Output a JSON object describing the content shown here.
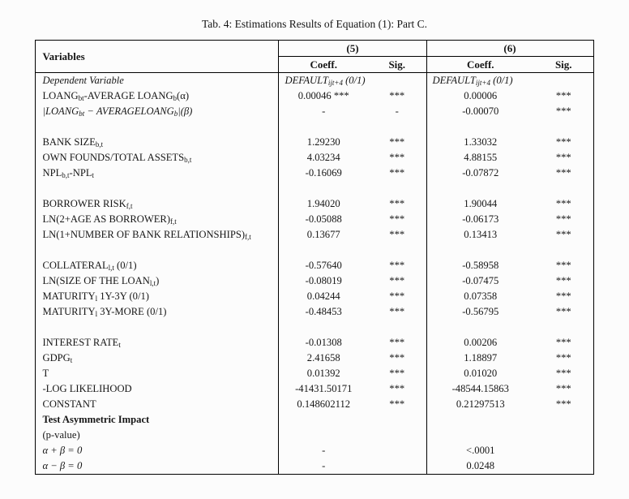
{
  "page": {
    "title": "Tab. 4: Estimations Results of Equation (1): Part C."
  },
  "table": {
    "header": {
      "variables_label": "Variables",
      "groups": [
        {
          "id": "(5)",
          "coeff": "Coeff.",
          "sig": "Sig."
        },
        {
          "id": "(6)",
          "coeff": "Coeff.",
          "sig": "Sig."
        }
      ]
    },
    "rows": [
      {
        "type": "depvar",
        "label": [
          {
            "t": "Dependent Variable"
          }
        ],
        "label_style": "italic",
        "c5": [
          {
            "t": "DEFAULT"
          },
          {
            "s": "ijt+4"
          },
          {
            "t": " (0/1)"
          }
        ],
        "c6": [
          {
            "t": "DEFAULT"
          },
          {
            "s": "ijt+4"
          },
          {
            "t": " (0/1)"
          }
        ]
      },
      {
        "label": [
          {
            "t": "LOANG"
          },
          {
            "s": "bt"
          },
          {
            "t": "-AVERAGE LOANG"
          },
          {
            "s": "b"
          },
          {
            "t": "(α)"
          }
        ],
        "c5_coeff": "0.00046 ***",
        "c5_sig": "***",
        "c6_coeff": "0.00006",
        "c6_sig": "***"
      },
      {
        "label": [
          {
            "t": "|LOANG"
          },
          {
            "s": "bt"
          },
          {
            "t": " − AVERAGELOANG"
          },
          {
            "s": "b"
          },
          {
            "t": "|(β)"
          }
        ],
        "label_style": "italic",
        "c5_coeff": "-",
        "c5_sig": "-",
        "c6_coeff": "-0.00070",
        "c6_sig": "***"
      },
      {
        "type": "blank"
      },
      {
        "label": [
          {
            "t": "BANK SIZE"
          },
          {
            "s": "b,t"
          }
        ],
        "c5_coeff": "1.29230",
        "c5_sig": "***",
        "c6_coeff": "1.33032",
        "c6_sig": "***"
      },
      {
        "label": [
          {
            "t": "OWN FOUNDS/TOTAL ASSETS"
          },
          {
            "s": "b,t"
          }
        ],
        "c5_coeff": "4.03234",
        "c5_sig": "***",
        "c6_coeff": "4.88155",
        "c6_sig": "***"
      },
      {
        "label": [
          {
            "t": "NPL"
          },
          {
            "s": "b,t"
          },
          {
            "t": "-NPL"
          },
          {
            "s": "t"
          }
        ],
        "c5_coeff": "-0.16069",
        "c5_sig": "***",
        "c6_coeff": "-0.07872",
        "c6_sig": "***"
      },
      {
        "type": "blank"
      },
      {
        "label": [
          {
            "t": "BORROWER RISK"
          },
          {
            "s": "f,t"
          }
        ],
        "c5_coeff": "1.94020",
        "c5_sig": "***",
        "c6_coeff": "1.90044",
        "c6_sig": "***"
      },
      {
        "label": [
          {
            "t": "LN(2+AGE AS BORROWER)"
          },
          {
            "s": "f,t"
          }
        ],
        "c5_coeff": "-0.05088",
        "c5_sig": "***",
        "c6_coeff": "-0.06173",
        "c6_sig": "***"
      },
      {
        "label": [
          {
            "t": "LN(1+NUMBER OF BANK RELATIONSHIPS)"
          },
          {
            "s": "f,t"
          }
        ],
        "c5_coeff": "0.13677",
        "c5_sig": "***",
        "c6_coeff": "0.13413",
        "c6_sig": "***"
      },
      {
        "type": "blank"
      },
      {
        "label": [
          {
            "t": "COLLATERAL"
          },
          {
            "s": "l,t"
          },
          {
            "t": " (0/1)"
          }
        ],
        "c5_coeff": "-0.57640",
        "c5_sig": "***",
        "c6_coeff": "-0.58958",
        "c6_sig": "***"
      },
      {
        "label": [
          {
            "t": "LN(SIZE OF THE LOAN"
          },
          {
            "s": "l,t"
          },
          {
            "t": ")"
          }
        ],
        "c5_coeff": "-0.08019",
        "c5_sig": "***",
        "c6_coeff": "-0.07475",
        "c6_sig": "***"
      },
      {
        "label": [
          {
            "t": "MATURITY"
          },
          {
            "s": "l"
          },
          {
            "t": " 1Y-3Y (0/1)"
          }
        ],
        "c5_coeff": "0.04244",
        "c5_sig": "***",
        "c6_coeff": "0.07358",
        "c6_sig": "***"
      },
      {
        "label": [
          {
            "t": "MATURITY"
          },
          {
            "s": "l"
          },
          {
            "t": " 3Y-MORE (0/1)"
          }
        ],
        "c5_coeff": "-0.48453",
        "c5_sig": "***",
        "c6_coeff": "-0.56795",
        "c6_sig": "***"
      },
      {
        "type": "blank"
      },
      {
        "label": [
          {
            "t": "INTEREST RATE"
          },
          {
            "s": "t"
          }
        ],
        "c5_coeff": "-0.01308",
        "c5_sig": "***",
        "c6_coeff": "0.00206",
        "c6_sig": "***"
      },
      {
        "label": [
          {
            "t": "GDPG"
          },
          {
            "s": "t"
          }
        ],
        "c5_coeff": "2.41658",
        "c5_sig": "***",
        "c6_coeff": "1.18897",
        "c6_sig": "***"
      },
      {
        "label": [
          {
            "t": "T"
          }
        ],
        "c5_coeff": "0.01392",
        "c5_sig": "***",
        "c6_coeff": "0.01020",
        "c6_sig": "***"
      },
      {
        "label": [
          {
            "t": "-LOG LIKELIHOOD"
          }
        ],
        "c5_coeff": "-41431.50171",
        "c5_sig": "***",
        "c6_coeff": "-48544.15863",
        "c6_sig": "***"
      },
      {
        "label": [
          {
            "t": "CONSTANT"
          }
        ],
        "c5_coeff": "0.148602112",
        "c5_sig": "***",
        "c6_coeff": "0.21297513",
        "c6_sig": "***"
      },
      {
        "label": [
          {
            "t": "Test Asymmetric Impact"
          }
        ],
        "label_style": "bold",
        "c5_coeff": "",
        "c5_sig": "",
        "c6_coeff": "",
        "c6_sig": ""
      },
      {
        "label": [
          {
            "t": "(p-value)"
          }
        ],
        "c5_coeff": "",
        "c5_sig": "",
        "c6_coeff": "",
        "c6_sig": ""
      },
      {
        "label": [
          {
            "t": "α + β = 0"
          }
        ],
        "label_style": "italic",
        "c5_coeff": "-",
        "c5_sig": "",
        "c6_coeff": "<.0001",
        "c6_sig": ""
      },
      {
        "label": [
          {
            "t": "α − β = 0"
          }
        ],
        "label_style": "italic",
        "c5_coeff": "-",
        "c5_sig": "",
        "c6_coeff": "0.0248",
        "c6_sig": ""
      }
    ]
  }
}
